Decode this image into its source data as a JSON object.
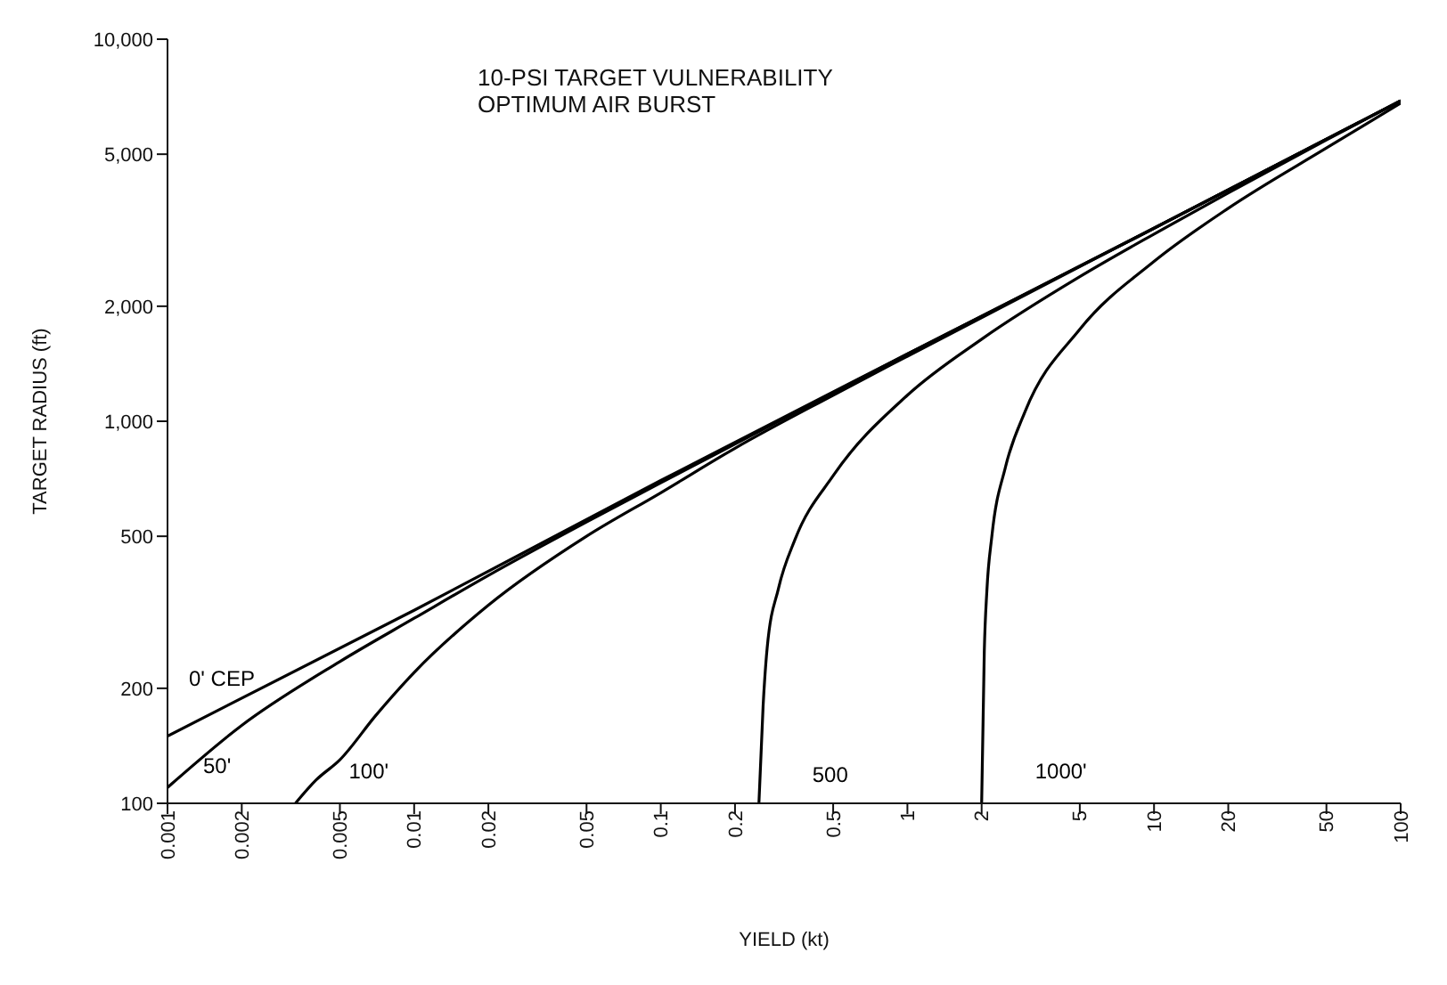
{
  "chart_data": {
    "type": "line",
    "title": "10-PSI TARGET VULNERABILITY",
    "subtitle": "OPTIMUM AIR BURST",
    "xlabel": "YIELD (kt)",
    "ylabel": "TARGET RADIUS (ft)",
    "log": "xy",
    "grid": false,
    "marker": "none",
    "line_style": "solid",
    "xlim": [
      0.001,
      100
    ],
    "ylim": [
      100,
      10000
    ],
    "xticks": [
      0.001,
      0.002,
      0.005,
      0.01,
      0.02,
      0.05,
      0.1,
      0.2,
      0.5,
      1,
      2,
      5,
      10,
      20,
      50,
      100
    ],
    "yticks": [
      100,
      200,
      500,
      {
        "value": 1000,
        "label": "1,000"
      },
      {
        "value": 2000,
        "label": "2,000"
      },
      {
        "value": 5000,
        "label": "5,000"
      },
      {
        "value": 10000,
        "label": "10,000"
      }
    ],
    "series": [
      {
        "name": "0' CEP",
        "color": "#000000",
        "x": [
          0.001,
          0.01,
          0.1,
          1,
          10,
          100
        ],
        "values": [
          150,
          320,
          700,
          1500,
          3200,
          6900
        ]
      },
      {
        "name": "50'",
        "color": "#000000",
        "x": [
          0.001,
          0.002,
          0.005,
          0.01,
          0.02,
          0.05,
          0.1,
          1,
          10,
          100
        ],
        "values": [
          110,
          160,
          235,
          305,
          395,
          545,
          690,
          1500,
          3200,
          6900
        ]
      },
      {
        "name": "100'",
        "color": "#000000",
        "x": [
          0.0033,
          0.004,
          0.005,
          0.007,
          0.01,
          0.02,
          0.05,
          0.1,
          0.2,
          0.5,
          1,
          10,
          100
        ],
        "values": [
          100,
          115,
          130,
          170,
          220,
          330,
          500,
          650,
          850,
          1170,
          1480,
          3200,
          6900
        ]
      },
      {
        "name": "500",
        "color": "#000000",
        "x": [
          0.25,
          0.26,
          0.27,
          0.3,
          0.35,
          0.5,
          1,
          2,
          5,
          10,
          20,
          50,
          100
        ],
        "values": [
          100,
          180,
          255,
          365,
          490,
          720,
          1170,
          1640,
          2390,
          3090,
          3960,
          5450,
          6900
        ]
      },
      {
        "name": "1000'",
        "color": "#000000",
        "x": [
          2,
          2.05,
          2.1,
          2.2,
          2.5,
          3,
          5,
          10,
          20,
          50,
          100
        ],
        "values": [
          100,
          250,
          360,
          500,
          760,
          1060,
          1740,
          2620,
          3610,
          5190,
          6800
        ]
      }
    ]
  }
}
